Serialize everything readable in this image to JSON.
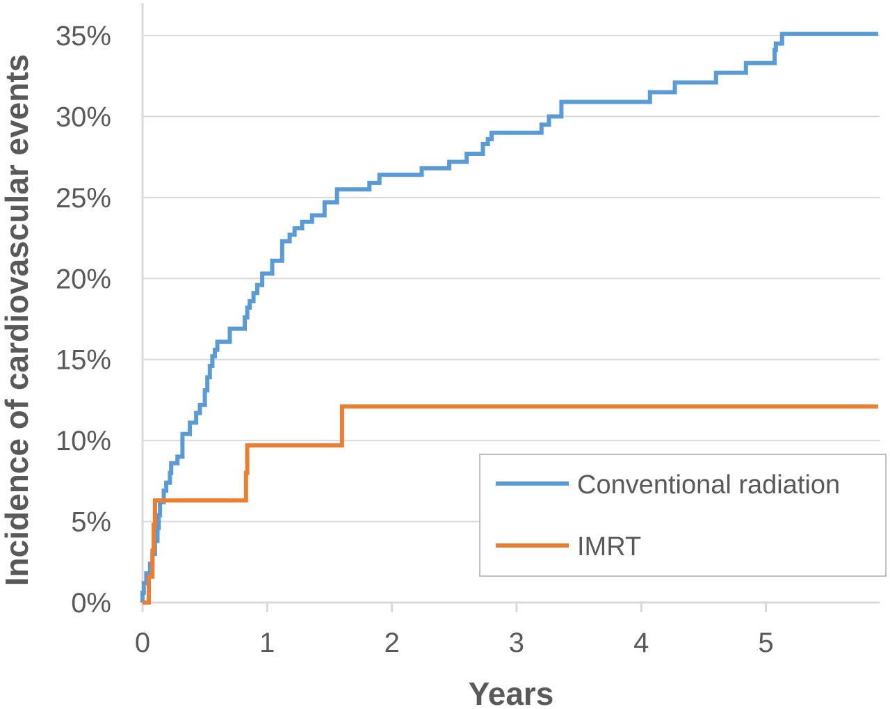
{
  "chart_data": {
    "type": "line",
    "step": true,
    "title": "",
    "xlabel": "Years",
    "ylabel": "Incidence of cardiovascular events",
    "xlim": [
      0,
      5.9
    ],
    "ylim": [
      0,
      35
    ],
    "x_ticks": [
      0,
      1,
      2,
      3,
      4,
      5
    ],
    "x_tick_labels": [
      "0",
      "1",
      "2",
      "3",
      "4",
      "5"
    ],
    "y_ticks": [
      0,
      5,
      10,
      15,
      20,
      25,
      30,
      35
    ],
    "y_tick_labels": [
      "0%",
      "5%",
      "10%",
      "15%",
      "20%",
      "25%",
      "30%",
      "35%"
    ],
    "grid": "horizontal",
    "legend_position": "bottom-right",
    "series": [
      {
        "name": "Conventional radiation",
        "color": "#5b9bd5",
        "points": [
          [
            0,
            0
          ],
          [
            0,
            0.6
          ],
          [
            0.01,
            0.6
          ],
          [
            0.01,
            1.2
          ],
          [
            0.03,
            1.2
          ],
          [
            0.03,
            1.8
          ],
          [
            0.06,
            1.8
          ],
          [
            0.06,
            2.4
          ],
          [
            0.08,
            2.4
          ],
          [
            0.08,
            3.0
          ],
          [
            0.1,
            3.0
          ],
          [
            0.1,
            3.8
          ],
          [
            0.12,
            3.8
          ],
          [
            0.12,
            4.6
          ],
          [
            0.13,
            4.6
          ],
          [
            0.13,
            5.4
          ],
          [
            0.14,
            5.4
          ],
          [
            0.14,
            6.2
          ],
          [
            0.17,
            6.2
          ],
          [
            0.17,
            6.9
          ],
          [
            0.19,
            6.9
          ],
          [
            0.19,
            7.4
          ],
          [
            0.22,
            7.4
          ],
          [
            0.22,
            8.0
          ],
          [
            0.23,
            8.0
          ],
          [
            0.23,
            8.6
          ],
          [
            0.28,
            8.6
          ],
          [
            0.28,
            9.0
          ],
          [
            0.32,
            9.0
          ],
          [
            0.32,
            10.4
          ],
          [
            0.38,
            10.4
          ],
          [
            0.38,
            11.1
          ],
          [
            0.43,
            11.1
          ],
          [
            0.43,
            11.7
          ],
          [
            0.46,
            11.7
          ],
          [
            0.46,
            12.2
          ],
          [
            0.5,
            12.2
          ],
          [
            0.5,
            13.1
          ],
          [
            0.52,
            13.1
          ],
          [
            0.52,
            13.9
          ],
          [
            0.54,
            13.9
          ],
          [
            0.54,
            14.6
          ],
          [
            0.56,
            14.6
          ],
          [
            0.56,
            15.2
          ],
          [
            0.58,
            15.2
          ],
          [
            0.58,
            15.6
          ],
          [
            0.6,
            15.6
          ],
          [
            0.6,
            16.1
          ],
          [
            0.7,
            16.1
          ],
          [
            0.7,
            16.9
          ],
          [
            0.82,
            16.9
          ],
          [
            0.82,
            17.6
          ],
          [
            0.84,
            17.6
          ],
          [
            0.84,
            18.2
          ],
          [
            0.86,
            18.2
          ],
          [
            0.86,
            18.6
          ],
          [
            0.89,
            18.6
          ],
          [
            0.89,
            19.1
          ],
          [
            0.92,
            19.1
          ],
          [
            0.92,
            19.6
          ],
          [
            0.96,
            19.6
          ],
          [
            0.96,
            20.3
          ],
          [
            1.04,
            20.3
          ],
          [
            1.04,
            21.1
          ],
          [
            1.12,
            21.1
          ],
          [
            1.12,
            22.3
          ],
          [
            1.18,
            22.3
          ],
          [
            1.18,
            22.7
          ],
          [
            1.22,
            22.7
          ],
          [
            1.22,
            23.1
          ],
          [
            1.28,
            23.1
          ],
          [
            1.28,
            23.5
          ],
          [
            1.36,
            23.5
          ],
          [
            1.36,
            23.9
          ],
          [
            1.46,
            23.9
          ],
          [
            1.46,
            24.7
          ],
          [
            1.56,
            24.7
          ],
          [
            1.56,
            25.5
          ],
          [
            1.82,
            25.5
          ],
          [
            1.82,
            25.9
          ],
          [
            1.9,
            25.9
          ],
          [
            1.9,
            26.4
          ],
          [
            2.24,
            26.4
          ],
          [
            2.24,
            26.8
          ],
          [
            2.46,
            26.8
          ],
          [
            2.46,
            27.2
          ],
          [
            2.6,
            27.2
          ],
          [
            2.6,
            27.7
          ],
          [
            2.73,
            27.7
          ],
          [
            2.73,
            28.3
          ],
          [
            2.77,
            28.3
          ],
          [
            2.77,
            28.6
          ],
          [
            2.8,
            28.6
          ],
          [
            2.8,
            29.0
          ],
          [
            3.2,
            29.0
          ],
          [
            3.2,
            29.5
          ],
          [
            3.26,
            29.5
          ],
          [
            3.26,
            30.0
          ],
          [
            3.36,
            30.0
          ],
          [
            3.36,
            30.9
          ],
          [
            4.07,
            30.9
          ],
          [
            4.07,
            31.5
          ],
          [
            4.27,
            31.5
          ],
          [
            4.27,
            32.1
          ],
          [
            4.6,
            32.1
          ],
          [
            4.6,
            32.7
          ],
          [
            4.84,
            32.7
          ],
          [
            4.84,
            33.3
          ],
          [
            5.07,
            33.3
          ],
          [
            5.07,
            34.1
          ],
          [
            5.08,
            34.1
          ],
          [
            5.08,
            34.5
          ],
          [
            5.13,
            34.5
          ],
          [
            5.13,
            35.1
          ],
          [
            5.9,
            35.1
          ]
        ]
      },
      {
        "name": "IMRT",
        "color": "#ed7d31",
        "points": [
          [
            0,
            0
          ],
          [
            0.05,
            0
          ],
          [
            0.05,
            1.6
          ],
          [
            0.08,
            1.6
          ],
          [
            0.08,
            3.2
          ],
          [
            0.09,
            3.2
          ],
          [
            0.09,
            4.8
          ],
          [
            0.1,
            4.8
          ],
          [
            0.1,
            6.3
          ],
          [
            0.83,
            6.3
          ],
          [
            0.83,
            8.0
          ],
          [
            0.84,
            8.0
          ],
          [
            0.84,
            9.7
          ],
          [
            1.6,
            9.7
          ],
          [
            1.6,
            12.1
          ],
          [
            5.9,
            12.1
          ]
        ]
      }
    ]
  }
}
